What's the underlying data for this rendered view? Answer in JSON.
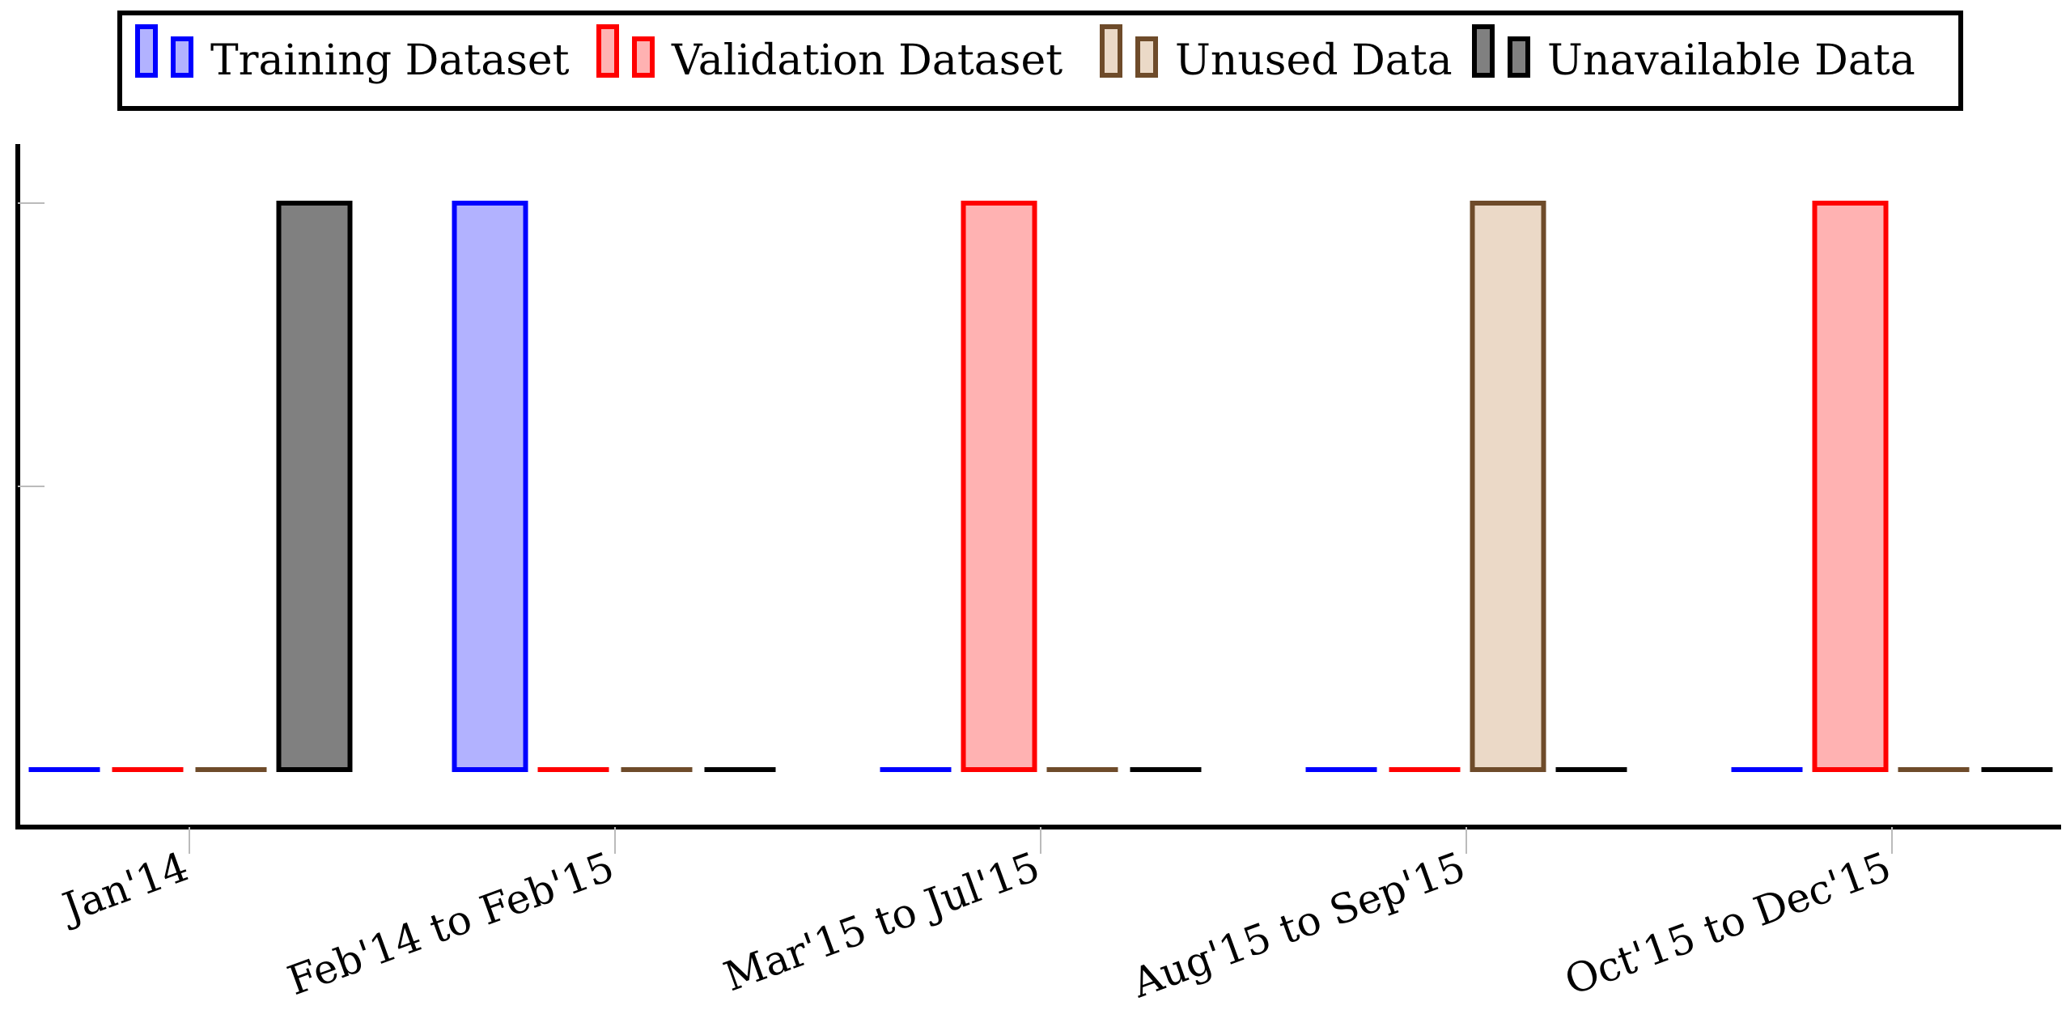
{
  "chart_data": {
    "type": "bar",
    "title": "",
    "xlabel": "",
    "ylabel": "",
    "ylim": [
      0,
      1.1
    ],
    "grid": false,
    "legend_position": "top-center",
    "categories": [
      "Jan'14",
      "Feb'14 to Feb'15",
      "Mar'15 to Jul'15",
      "Aug'15 to Sep'15",
      "Oct'15 to Dec'15"
    ],
    "series": [
      {
        "name": "Training Dataset",
        "stroke": "#0000ff",
        "fill": "#b2b2ff",
        "values": [
          0,
          1,
          0,
          0,
          0
        ]
      },
      {
        "name": "Validation Dataset",
        "stroke": "#ff0000",
        "fill": "#ffb2b2",
        "values": [
          0,
          0,
          1,
          0,
          1
        ]
      },
      {
        "name": "Unused Data",
        "stroke": "#6e4b2a",
        "fill": "#ebd9c7",
        "values": [
          0,
          0,
          0,
          1,
          0
        ]
      },
      {
        "name": "Unavailable Data",
        "stroke": "#000000",
        "fill": "#808080",
        "values": [
          1,
          0,
          0,
          0,
          0
        ]
      }
    ]
  }
}
